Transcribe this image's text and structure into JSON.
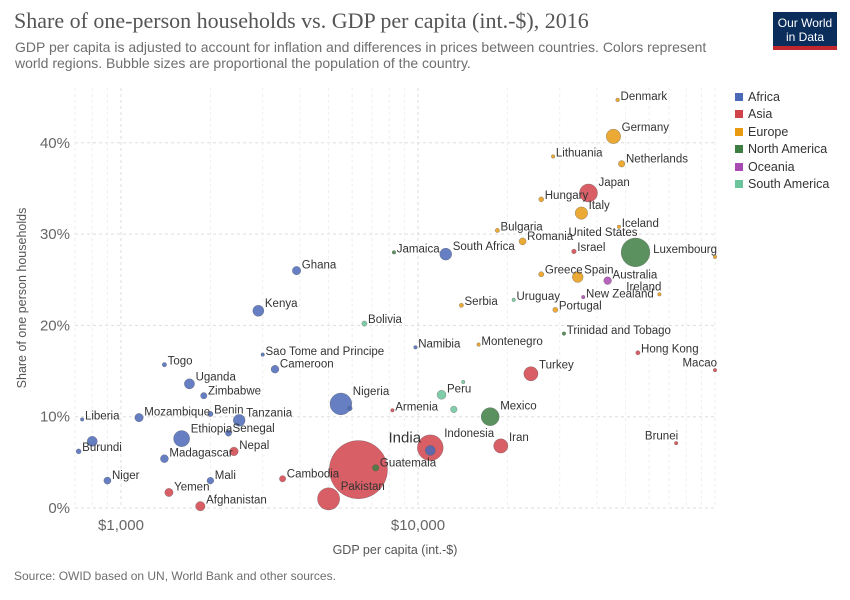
{
  "header": {
    "title": "Share of one-person households vs. GDP per capita (int.-$), 2016",
    "subtitle": "GDP per capita is adjusted to account for inflation and differences in prices between countries. Colors represent world regions. Bubble sizes are proportional the population of the country.",
    "logo_line1": "Our World",
    "logo_line2": "in Data"
  },
  "footer": {
    "source": "Source: OWID based on UN, World Bank and other sources."
  },
  "colors": {
    "Africa": "#4a69b7",
    "Asia": "#d1434b",
    "Europe": "#e89a13",
    "North America": "#3e7e43",
    "Oceania": "#a94ab2",
    "South America": "#6cc49a"
  },
  "chart_data": {
    "type": "scatter",
    "title": "Share of one-person households vs. GDP per capita (int.-$), 2016",
    "xlabel": "GDP per capita (int.-$)",
    "ylabel": "Share of one person households",
    "x_scale": "log",
    "xlim": [
      700,
      100000
    ],
    "ylim": [
      0,
      46
    ],
    "x_ticks": [
      {
        "value": 1000,
        "label": "$1,000"
      },
      {
        "value": 10000,
        "label": "$10,000"
      }
    ],
    "y_ticks": [
      {
        "value": 0,
        "label": "0%"
      },
      {
        "value": 10,
        "label": "10%"
      },
      {
        "value": 20,
        "label": "20%"
      },
      {
        "value": 30,
        "label": "30%"
      },
      {
        "value": 40,
        "label": "40%"
      }
    ],
    "grid": true,
    "legend_position": "right",
    "series": [
      {
        "name": "Africa",
        "color": "#4a69b7",
        "points": [
          {
            "label": "Ghana",
            "x": 3900,
            "y": 26.0,
            "pop": 28
          },
          {
            "label": "Kenya",
            "x": 2900,
            "y": 21.6,
            "pop": 48
          },
          {
            "label": "South Africa",
            "x": 12400,
            "y": 27.8,
            "pop": 56
          },
          {
            "label": "Sao Tome and Principe",
            "x": 3000,
            "y": 16.8,
            "pop": 0.2
          },
          {
            "label": "Cameroon",
            "x": 3300,
            "y": 15.2,
            "pop": 24
          },
          {
            "label": "Namibia",
            "x": 9800,
            "y": 17.6,
            "pop": 2.5
          },
          {
            "label": "Togo",
            "x": 1400,
            "y": 15.7,
            "pop": 7.6
          },
          {
            "label": "Uganda",
            "x": 1700,
            "y": 13.6,
            "pop": 41
          },
          {
            "label": "Zimbabwe",
            "x": 1900,
            "y": 12.3,
            "pop": 16
          },
          {
            "label": "Nigeria",
            "x": 5500,
            "y": 11.4,
            "pop": 186
          },
          {
            "label": "Liberia",
            "x": 740,
            "y": 9.7,
            "pop": 4.6
          },
          {
            "label": "Mozambique",
            "x": 1150,
            "y": 9.9,
            "pop": 28
          },
          {
            "label": "Benin",
            "x": 2000,
            "y": 10.3,
            "pop": 11
          },
          {
            "label": "Tanzania",
            "x": 2500,
            "y": 9.6,
            "pop": 55
          },
          {
            "label": "Ethiopia",
            "x": 1600,
            "y": 7.6,
            "pop": 102
          },
          {
            "label": "Senegal",
            "x": 2300,
            "y": 8.2,
            "pop": 15
          },
          {
            "label": "Burundi",
            "x": 720,
            "y": 6.2,
            "pop": 10
          },
          {
            "label": "Madagascar",
            "x": 1400,
            "y": 5.4,
            "pop": 25
          },
          {
            "label": "Mali",
            "x": 2000,
            "y": 3.0,
            "pop": 18
          },
          {
            "label": "Niger",
            "x": 900,
            "y": 3.0,
            "pop": 20
          },
          {
            "label": "",
            "x": 800,
            "y": 7.3,
            "pop": 40
          },
          {
            "label": "",
            "x": 5900,
            "y": 10.9,
            "pop": 8
          },
          {
            "label": "",
            "x": 11000,
            "y": 6.3,
            "pop": 40
          }
        ]
      },
      {
        "name": "Asia",
        "color": "#d1434b",
        "points": [
          {
            "label": "India",
            "x": 6300,
            "y": 4.2,
            "pop": 1324
          },
          {
            "label": "Pakistan",
            "x": 5000,
            "y": 1.0,
            "pop": 193
          },
          {
            "label": "Cambodia",
            "x": 3500,
            "y": 3.2,
            "pop": 15.8
          },
          {
            "label": "Yemen",
            "x": 1450,
            "y": 1.7,
            "pop": 27
          },
          {
            "label": "Afghanistan",
            "x": 1850,
            "y": 0.2,
            "pop": 35
          },
          {
            "label": "Nepal",
            "x": 2400,
            "y": 6.2,
            "pop": 29
          },
          {
            "label": "Armenia",
            "x": 8200,
            "y": 10.7,
            "pop": 2.9
          },
          {
            "label": "Indonesia",
            "x": 11000,
            "y": 6.6,
            "pop": 261
          },
          {
            "label": "Iran",
            "x": 19000,
            "y": 6.8,
            "pop": 80
          },
          {
            "label": "Turkey",
            "x": 24000,
            "y": 14.7,
            "pop": 79
          },
          {
            "label": "Israel",
            "x": 33500,
            "y": 28.1,
            "pop": 8.5
          },
          {
            "label": "Japan",
            "x": 37500,
            "y": 34.5,
            "pop": 127
          },
          {
            "label": "Hong Kong",
            "x": 55000,
            "y": 17.0,
            "pop": 7.3
          },
          {
            "label": "Macao",
            "x": 100000,
            "y": 15.1,
            "pop": 0.6
          },
          {
            "label": "Brunei",
            "x": 74000,
            "y": 7.1,
            "pop": 0.4
          }
        ]
      },
      {
        "name": "Europe",
        "color": "#e89a13",
        "points": [
          {
            "label": "Denmark",
            "x": 47000,
            "y": 44.7,
            "pop": 5.7
          },
          {
            "label": "Germany",
            "x": 45500,
            "y": 40.7,
            "pop": 82
          },
          {
            "label": "Lithuania",
            "x": 28500,
            "y": 38.5,
            "pop": 2.9
          },
          {
            "label": "Netherlands",
            "x": 48500,
            "y": 37.7,
            "pop": 17
          },
          {
            "label": "Hungary",
            "x": 26000,
            "y": 33.8,
            "pop": 9.8
          },
          {
            "label": "Italy",
            "x": 35500,
            "y": 32.3,
            "pop": 61
          },
          {
            "label": "Iceland",
            "x": 47500,
            "y": 30.8,
            "pop": 0.3
          },
          {
            "label": "Bulgaria",
            "x": 18500,
            "y": 30.4,
            "pop": 7.1
          },
          {
            "label": "Romania",
            "x": 22500,
            "y": 29.2,
            "pop": 19.7
          },
          {
            "label": "Luxembourg",
            "x": 100000,
            "y": 27.5,
            "pop": 0.6
          },
          {
            "label": "Greece",
            "x": 26000,
            "y": 25.6,
            "pop": 10.8
          },
          {
            "label": "Spain",
            "x": 34500,
            "y": 25.3,
            "pop": 46
          },
          {
            "label": "Serbia",
            "x": 14000,
            "y": 22.2,
            "pop": 7
          },
          {
            "label": "Portugal",
            "x": 29000,
            "y": 21.7,
            "pop": 10.3
          },
          {
            "label": "Ireland",
            "x": 65000,
            "y": 23.4,
            "pop": 4.7
          },
          {
            "label": "Montenegro",
            "x": 16000,
            "y": 17.9,
            "pop": 0.6
          }
        ]
      },
      {
        "name": "North America",
        "color": "#3e7e43",
        "points": [
          {
            "label": "United States",
            "x": 54000,
            "y": 28.0,
            "pop": 323
          },
          {
            "label": "Jamaica",
            "x": 8300,
            "y": 28.0,
            "pop": 2.9
          },
          {
            "label": "Guatemala",
            "x": 7200,
            "y": 4.4,
            "pop": 16.6
          },
          {
            "label": "Mexico",
            "x": 17500,
            "y": 10.0,
            "pop": 127
          },
          {
            "label": "Trinidad and Tobago",
            "x": 31000,
            "y": 19.1,
            "pop": 1.4
          }
        ]
      },
      {
        "name": "Oceania",
        "color": "#a94ab2",
        "points": [
          {
            "label": "Australia",
            "x": 43500,
            "y": 24.9,
            "pop": 24
          },
          {
            "label": "New Zealand",
            "x": 36000,
            "y": 23.1,
            "pop": 4.7
          }
        ]
      },
      {
        "name": "South America",
        "color": "#6cc49a",
        "points": [
          {
            "label": "Bolivia",
            "x": 6600,
            "y": 20.2,
            "pop": 10.9
          },
          {
            "label": "Uruguay",
            "x": 21000,
            "y": 22.8,
            "pop": 3.4
          },
          {
            "label": "Peru",
            "x": 12000,
            "y": 12.4,
            "pop": 31.8
          },
          {
            "label": "",
            "x": 13200,
            "y": 10.8,
            "pop": 17
          },
          {
            "label": "",
            "x": 14200,
            "y": 13.8,
            "pop": 4.9
          }
        ]
      }
    ]
  }
}
